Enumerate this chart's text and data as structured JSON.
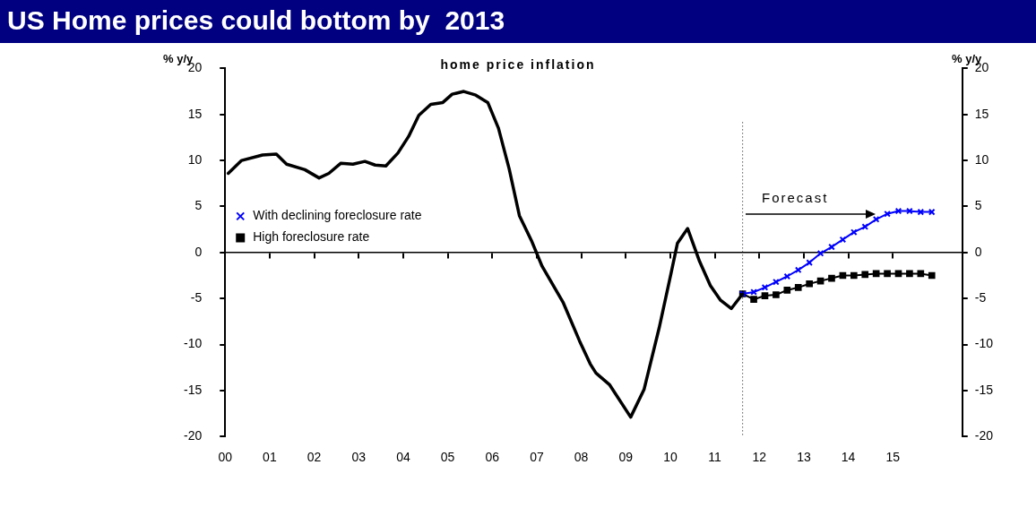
{
  "chart_data": {
    "type": "line",
    "title": "US Home prices could bottom by  2013",
    "subtitle": "home price inflation",
    "ylabel": "% y/y",
    "y2label": "% y/y",
    "annotations": [
      "Forecast"
    ],
    "series": [
      {
        "name": null,
        "color": "#000000",
        "marker": "none",
        "x": [
          2000.07,
          2000.37,
          2000.84,
          2001.15,
          2001.38,
          2001.79,
          2002.11,
          2002.33,
          2002.6,
          2002.87,
          2003.14,
          2003.37,
          2003.61,
          2003.88,
          2004.12,
          2004.35,
          2004.62,
          2004.89,
          2005.1,
          2005.36,
          2005.63,
          2005.9,
          2006.14,
          2006.38,
          2006.61,
          2006.88,
          2007.12,
          2007.59,
          2007.96,
          2008.2,
          2008.33,
          2008.64,
          2009.11,
          2009.41,
          2009.75,
          2010.02,
          2010.16,
          2010.39,
          2010.66,
          2010.9,
          2011.13,
          2011.37,
          2011.625
        ],
        "values": [
          8.6,
          10.0,
          10.6,
          10.7,
          9.6,
          9.0,
          8.1,
          8.6,
          9.7,
          9.6,
          9.9,
          9.5,
          9.4,
          10.8,
          12.6,
          14.9,
          16.1,
          16.3,
          17.2,
          17.5,
          17.1,
          16.3,
          13.5,
          9.1,
          4.0,
          1.3,
          -1.5,
          -5.4,
          -9.6,
          -12.1,
          -13.1,
          -14.4,
          -17.9,
          -14.9,
          -8.2,
          -2.2,
          1.0,
          2.6,
          -1.0,
          -3.6,
          -5.2,
          -6.1,
          -4.5
        ]
      },
      {
        "name": "With declining foreclosure rate",
        "color": "#0000ff",
        "marker": "cross",
        "x": [
          2011.625,
          2011.875,
          2012.125,
          2012.375,
          2012.625,
          2012.875,
          2013.125,
          2013.375,
          2013.625,
          2013.875,
          2014.125,
          2014.375,
          2014.625,
          2014.875,
          2015.125,
          2015.375,
          2015.625,
          2015.875
        ],
        "values": [
          -4.5,
          -4.3,
          -3.8,
          -3.2,
          -2.6,
          -1.9,
          -1.1,
          -0.1,
          0.6,
          1.4,
          2.2,
          2.8,
          3.6,
          4.2,
          4.5,
          4.5,
          4.4,
          4.4
        ]
      },
      {
        "name": "High foreclosure rate",
        "color": "#000000",
        "marker": "square",
        "x": [
          2011.625,
          2011.875,
          2012.125,
          2012.375,
          2012.625,
          2012.875,
          2013.125,
          2013.375,
          2013.625,
          2013.875,
          2014.125,
          2014.375,
          2014.625,
          2014.875,
          2015.125,
          2015.375,
          2015.625,
          2015.875
        ],
        "values": [
          -4.5,
          -5.1,
          -4.7,
          -4.6,
          -4.1,
          -3.8,
          -3.4,
          -3.1,
          -2.8,
          -2.5,
          -2.5,
          -2.4,
          -2.3,
          -2.3,
          -2.3,
          -2.3,
          -2.3,
          -2.5
        ]
      }
    ],
    "xlim": [
      2000,
      2016.56
    ],
    "xticks": [
      {
        "value": 2000,
        "label": "00"
      },
      {
        "value": 2001,
        "label": "01"
      },
      {
        "value": 2002,
        "label": "02"
      },
      {
        "value": 2003,
        "label": "03"
      },
      {
        "value": 2004,
        "label": "04"
      },
      {
        "value": 2005,
        "label": "05"
      },
      {
        "value": 2006,
        "label": "06"
      },
      {
        "value": 2007,
        "label": "07"
      },
      {
        "value": 2008,
        "label": "08"
      },
      {
        "value": 2009,
        "label": "09"
      },
      {
        "value": 2010,
        "label": "10"
      },
      {
        "value": 2011,
        "label": "11"
      },
      {
        "value": 2012,
        "label": "12"
      },
      {
        "value": 2013,
        "label": "13"
      },
      {
        "value": 2014,
        "label": "14"
      },
      {
        "value": 2015,
        "label": "15"
      }
    ],
    "ylim": [
      -20,
      20
    ],
    "yticks": [
      -20,
      -15,
      -10,
      -5,
      0,
      5,
      10,
      15,
      20
    ],
    "y2lim": [
      -20,
      20
    ],
    "y2ticks": [
      -20,
      -15,
      -10,
      -5,
      0,
      5,
      10,
      15,
      20
    ],
    "ref_lines": [
      {
        "axis": "x",
        "value": 2011.625,
        "line_style": "dotted",
        "color": "#000000"
      }
    ],
    "legend": "top"
  }
}
